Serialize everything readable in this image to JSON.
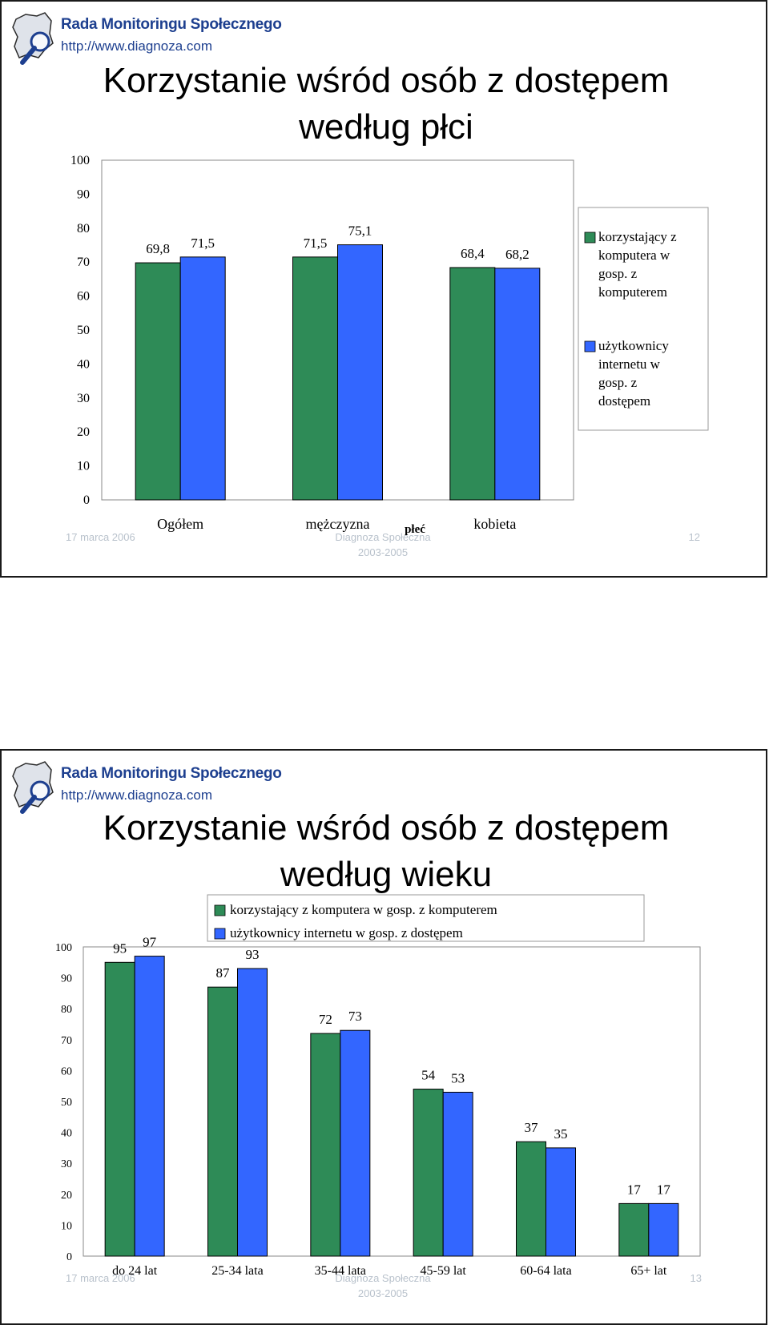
{
  "slides": [
    {
      "logo": {
        "title": "Rada Monitoringu Społecznego",
        "url": "http://www.diagnoza.com"
      },
      "title_line1": "Korzystanie wśród osób z dostępem",
      "title_line2": "według płci",
      "footer": {
        "date": "17 marca 2006",
        "center_line1": "Diagnoza Społeczna",
        "center_line2": "2003-2005",
        "page": "12"
      }
    },
    {
      "logo": {
        "title": "Rada Monitoringu Społecznego",
        "url": "http://www.diagnoza.com"
      },
      "title_line1": "Korzystanie wśród osób z dostępem",
      "title_line2": "według wieku",
      "footer": {
        "date": "17 marca 2006",
        "center_line1": "Diagnoza Społeczna",
        "center_line2": "2003-2005",
        "page": "13"
      }
    }
  ],
  "chart_data": [
    {
      "type": "bar",
      "title": "",
      "xlabel": "płeć",
      "ylabel": "",
      "ylim": [
        0,
        100
      ],
      "yticks": [
        "0",
        "10",
        "20",
        "30",
        "40",
        "50",
        "60",
        "70",
        "80",
        "90",
        "100"
      ],
      "categories": [
        "Ogółem",
        "mężczyzna",
        "kobieta"
      ],
      "series": [
        {
          "name": "korzystający z komputera w gosp. z komputerem",
          "values": [
            69.8,
            71.5,
            68.4
          ],
          "labels": [
            "69,8",
            "71,5",
            "68,4"
          ],
          "color": "#2e8b57"
        },
        {
          "name": "użytkownicy internetu w gosp. z dostępem",
          "values": [
            71.5,
            75.1,
            68.2
          ],
          "labels": [
            "71,5",
            "75,1",
            "68,2"
          ],
          "color": "#3366ff"
        }
      ],
      "legend_position": "right",
      "grid": false
    },
    {
      "type": "bar",
      "title": "",
      "xlabel": "",
      "ylabel": "",
      "ylim": [
        0,
        100
      ],
      "yticks": [
        "0",
        "10",
        "20",
        "30",
        "40",
        "50",
        "60",
        "70",
        "80",
        "90",
        "100"
      ],
      "categories": [
        "do 24 lat",
        "25-34 lata",
        "35-44 lata",
        "45-59 lat",
        "60-64 lata",
        "65+ lat"
      ],
      "series": [
        {
          "name": "korzystający z komputera w gosp. z komputerem",
          "values": [
            95,
            87,
            72,
            54,
            37,
            17
          ],
          "labels": [
            "95",
            "87",
            "72",
            "54",
            "37",
            "17"
          ],
          "color": "#2e8b57"
        },
        {
          "name": "użytkownicy internetu w gosp. z dostępem",
          "values": [
            97,
            93,
            73,
            53,
            35,
            17
          ],
          "labels": [
            "97",
            "93",
            "73",
            "53",
            "35",
            "17"
          ],
          "color": "#3366ff"
        }
      ],
      "legend_position": "top",
      "grid": false
    }
  ]
}
